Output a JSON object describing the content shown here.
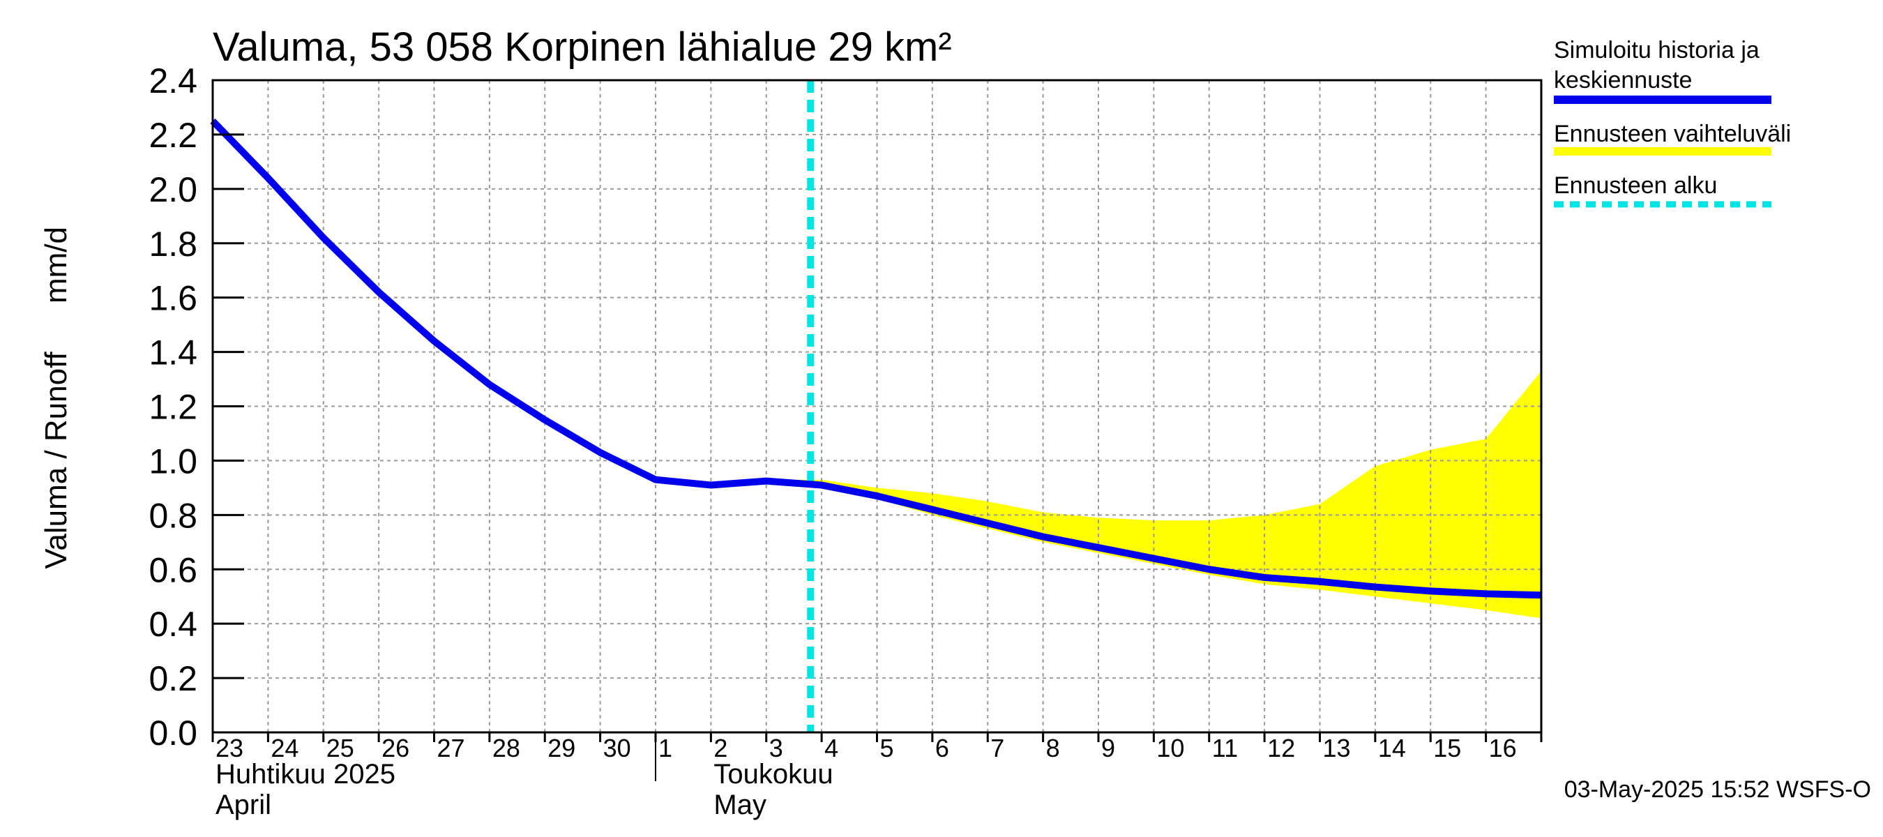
{
  "chart_data": {
    "type": "line",
    "title": "Valuma, 53 058 Korpinen lähialue 29 km²",
    "ylabel_left": "Valuma / Runoff",
    "ylabel_right": "mm/d",
    "ylim": [
      0,
      2.4
    ],
    "yticks": [
      "0.0",
      "0.2",
      "0.4",
      "0.6",
      "0.8",
      "1.0",
      "1.2",
      "1.4",
      "1.6",
      "1.8",
      "2.0",
      "2.2",
      "2.4"
    ],
    "x_day_labels": [
      "23",
      "24",
      "25",
      "26",
      "27",
      "28",
      "29",
      "30",
      "1",
      "2",
      "3",
      "4",
      "5",
      "6",
      "7",
      "8",
      "9",
      "10",
      "11",
      "12",
      "13",
      "14",
      "15",
      "16"
    ],
    "month_labels": [
      {
        "line1": "Huhtikuu  2025",
        "line2": "April"
      },
      {
        "line1": "Toukokuu",
        "line2": "May"
      }
    ],
    "forecast_start_day": 10.8,
    "series": [
      {
        "name": "Simuloitu historia ja keskiennuste",
        "color": "#0000ee",
        "x": [
          0,
          1,
          2,
          3,
          4,
          5,
          6,
          7,
          8,
          9,
          10,
          11,
          12,
          13,
          14,
          15,
          16,
          17,
          18,
          19,
          20,
          21,
          22,
          23,
          24
        ],
        "values": [
          2.25,
          2.04,
          1.82,
          1.62,
          1.44,
          1.28,
          1.15,
          1.03,
          0.93,
          0.91,
          0.925,
          0.91,
          0.87,
          0.82,
          0.77,
          0.72,
          0.68,
          0.64,
          0.6,
          0.57,
          0.555,
          0.535,
          0.52,
          0.51,
          0.505
        ]
      }
    ],
    "band": {
      "name": "Ennusteen vaihteluväli",
      "color": "#ffff00",
      "x": [
        10,
        11,
        12,
        13,
        14,
        15,
        16,
        17,
        18,
        19,
        20,
        21,
        22,
        23,
        24
      ],
      "upper": [
        0.93,
        0.93,
        0.9,
        0.88,
        0.85,
        0.81,
        0.79,
        0.78,
        0.78,
        0.8,
        0.84,
        0.98,
        1.04,
        1.08,
        1.33
      ],
      "lower": [
        0.92,
        0.9,
        0.86,
        0.8,
        0.75,
        0.7,
        0.66,
        0.62,
        0.58,
        0.545,
        0.525,
        0.5,
        0.475,
        0.45,
        0.42
      ]
    },
    "legend": [
      {
        "label_lines": [
          "Simuloitu historia ja",
          "keskiennuste"
        ],
        "color": "#0000ee",
        "style": "solid"
      },
      {
        "label_lines": [
          "Ennusteen vaihteluväli"
        ],
        "color": "#ffff00",
        "style": "solid"
      },
      {
        "label_lines": [
          "Ennusteen alku"
        ],
        "color": "#00e5e5",
        "style": "dashed"
      }
    ],
    "footer": "03-May-2025 15:52 WSFS-O",
    "grid": true
  }
}
